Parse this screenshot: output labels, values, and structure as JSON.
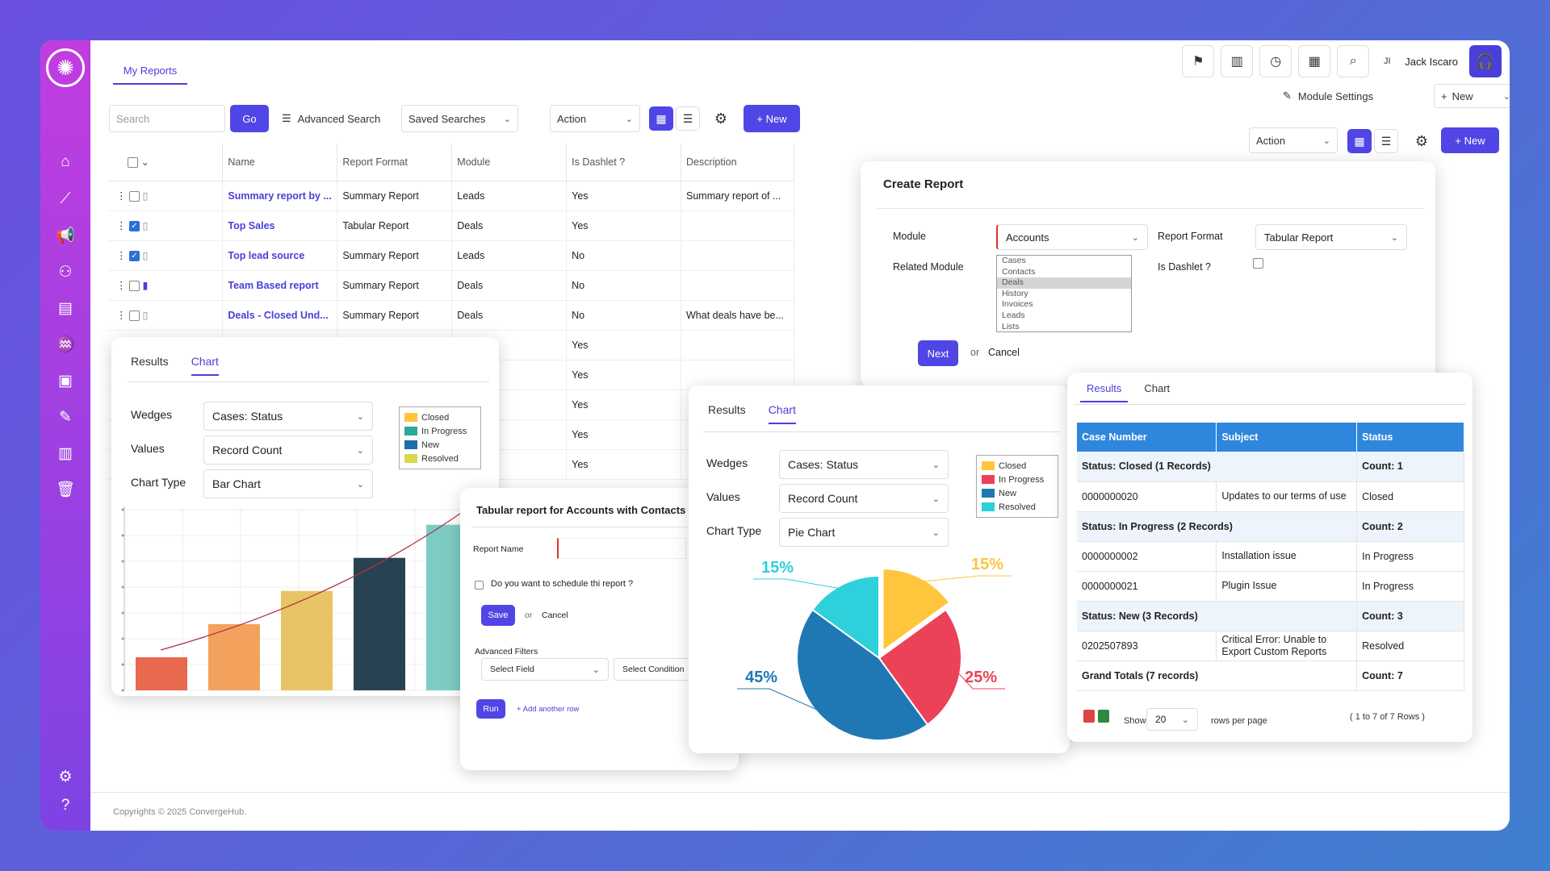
{
  "sidebar": {
    "icons": [
      "home-icon",
      "pipeline-icon",
      "megaphone-icon",
      "contacts-icon",
      "messages-icon",
      "handshake-icon",
      "id-card-icon",
      "wrench-icon",
      "clipboard-icon",
      "trash-icon"
    ],
    "bottom_icons": [
      "settings-icon",
      "help-icon"
    ]
  },
  "header": {
    "tab": "My Reports",
    "user_initials": "JI",
    "user_name": "Jack Iscaro",
    "module_settings": "Module Settings",
    "new_label": "New"
  },
  "toolbar": {
    "search_placeholder": "Search",
    "go": "Go",
    "advanced_search": "Advanced Search",
    "saved_searches": "Saved Searches",
    "action": "Action",
    "new_button": "+ New"
  },
  "toolbar2": {
    "action": "Action",
    "new_button": "+ New"
  },
  "reports_table": {
    "columns": [
      "Name",
      "Report Format",
      "Module",
      "Is Dashlet ?",
      "Description"
    ],
    "rows": [
      {
        "name": "Summary report by ...",
        "format": "Summary Report",
        "module": "Leads",
        "dashlet": "Yes",
        "desc": "Summary report of ...",
        "checked": false,
        "bookmarked": false
      },
      {
        "name": "Top Sales",
        "format": "Tabular Report",
        "module": "Deals",
        "dashlet": "Yes",
        "desc": "",
        "checked": true,
        "bookmarked": false
      },
      {
        "name": "Top lead source",
        "format": "Summary Report",
        "module": "Leads",
        "dashlet": "No",
        "desc": "",
        "checked": true,
        "bookmarked": false
      },
      {
        "name": "Team Based report",
        "format": "Summary Report",
        "module": "Deals",
        "dashlet": "No",
        "desc": "",
        "checked": false,
        "bookmarked": true
      },
      {
        "name": "Deals - Closed Und...",
        "format": "Summary Report",
        "module": "Deals",
        "dashlet": "No",
        "desc": "What deals have be...",
        "checked": false,
        "bookmarked": false
      }
    ],
    "extra_dashlet": [
      "Yes",
      "Yes",
      "Yes",
      "Yes",
      "Yes"
    ]
  },
  "bar_card": {
    "tab_results": "Results",
    "tab_chart": "Chart",
    "wedges_label": "Wedges",
    "wedges_value": "Cases: Status",
    "values_label": "Values",
    "values_value": "Record Count",
    "chart_type_label": "Chart Type",
    "chart_type_value": "Bar Chart",
    "legend": [
      "Closed",
      "In Progress",
      "New",
      "Resolved"
    ]
  },
  "create_report": {
    "title": "Create Report",
    "module_label": "Module",
    "module_value": "Accounts",
    "report_format_label": "Report Format",
    "report_format_value": "Tabular Report",
    "related_module_label": "Related Module",
    "related_options": [
      "Cases",
      "Contacts",
      "Deals",
      "History",
      "Invoices",
      "Leads",
      "Lists"
    ],
    "related_selected": "Deals",
    "is_dashlet_label": "Is Dashlet ?",
    "next": "Next",
    "or": "or",
    "cancel": "Cancel"
  },
  "tabular_card": {
    "title": "Tabular report for Accounts with Contacts",
    "report_name_label": "Report Name",
    "schedule_label": "Do you want to schedule thi report ?",
    "save": "Save",
    "or": "or",
    "cancel": "Cancel",
    "advanced_filters": "Advanced Filters",
    "select_field": "Select Field",
    "select_condition": "Select Condition",
    "run": "Run",
    "add_row": "+ Add another row"
  },
  "pie_card": {
    "tab_results": "Results",
    "tab_chart": "Chart",
    "wedges_label": "Wedges",
    "wedges_value": "Cases: Status",
    "values_label": "Values",
    "values_value": "Record Count",
    "chart_type_label": "Chart Type",
    "chart_type_value": "Pie Chart",
    "legend": [
      "Closed",
      "In Progress",
      "New",
      "Resolved"
    ]
  },
  "results_card": {
    "tab_results": "Results",
    "tab_chart": "Chart",
    "columns": [
      "Case Number",
      "Subject",
      "Status"
    ],
    "rows": [
      {
        "type": "grp",
        "a": "Status: Closed (1 Records)",
        "c": "Count: 1"
      },
      {
        "type": "row",
        "a": "0000000020",
        "b": "Updates to our terms of use",
        "c": "Closed"
      },
      {
        "type": "grp",
        "a": "Status: In Progress (2 Records)",
        "c": "Count: 2"
      },
      {
        "type": "row",
        "a": "0000000002",
        "b": "Installation issue",
        "c": "In Progress"
      },
      {
        "type": "row",
        "a": "0000000021",
        "b": "Plugin Issue",
        "c": "In Progress"
      },
      {
        "type": "grp",
        "a": "Status: New (3 Records)",
        "c": "Count: 3"
      },
      {
        "type": "row",
        "a": "0202507893",
        "b": "Critical Error: Unable to Export Custom Reports",
        "c": "Resolved"
      },
      {
        "type": "tot",
        "a": "Grand Totals (7 records)",
        "c": "Count: 7"
      }
    ],
    "show": "Show",
    "page_size": "20",
    "rows_per_page": "rows per page",
    "range": "( 1 to 7 of 7 Rows )"
  },
  "footer": "Copyrights © 2025 ConvergeHub.",
  "colors": {
    "accent": "#5046e5",
    "closed": "#ffc53d",
    "in_progress": "#ec4257",
    "new": "#1f78b4",
    "resolved": "#2ed0dc"
  },
  "chart_data": [
    {
      "type": "bar",
      "categories": [
        "",
        "",
        "",
        "",
        ""
      ],
      "values": [
        1,
        2,
        3,
        4,
        5
      ],
      "colors": [
        "#e8694e",
        "#f2a25c",
        "#e8c466",
        "#274352",
        "#7dccc4"
      ],
      "trendline": true,
      "title": "",
      "xlabel": "",
      "ylabel": ""
    },
    {
      "type": "pie",
      "labels": [
        "Closed",
        "In Progress",
        "New",
        "Resolved"
      ],
      "values": [
        15,
        25,
        45,
        15
      ],
      "display_labels": [
        "15%",
        "25%",
        "45%",
        "15%"
      ],
      "colors": [
        "#ffc53d",
        "#ec4257",
        "#1f78b4",
        "#2ed0dc"
      ]
    }
  ]
}
